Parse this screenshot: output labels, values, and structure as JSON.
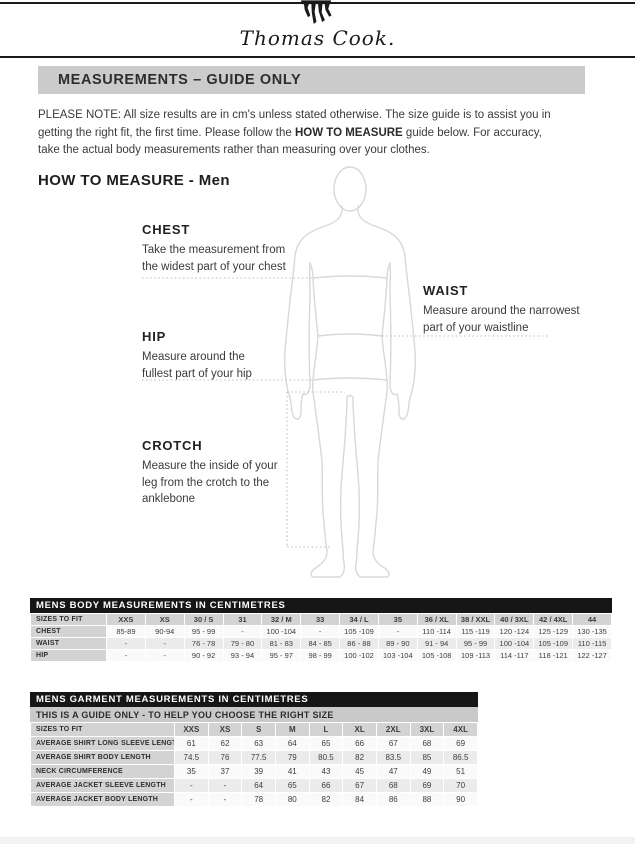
{
  "colors": {
    "bar_black": "#161616",
    "title_band_gray": "#cbcbcb",
    "table_label_gray": "#d3d3d3",
    "row_shade_gray": "#ebebeb",
    "figure_outline_gray": "#d8d8db"
  },
  "logo": {
    "text": "Thomas Cook."
  },
  "title_band": "MEASUREMENTS – GUIDE ONLY",
  "note": {
    "part1": "PLEASE NOTE:  All size results are in cm's unless stated otherwise. The size guide is to assist you in getting the right fit, the first time. Please follow the ",
    "bold": "HOW TO MEASURE",
    "part2": " guide below. For accuracy, take the actual body measurements rather than measuring over your clothes."
  },
  "how_to_measure": {
    "heading": "HOW TO MEASURE - Men",
    "chest": {
      "title": "CHEST",
      "line1": "Take the measurement from",
      "line2": "the widest part of your chest"
    },
    "waist": {
      "title": "WAIST",
      "line1": "Measure around the narrowest",
      "line2": "part of  your waistline"
    },
    "hip": {
      "title": "HIP",
      "line1": "Measure around the",
      "line2": "fullest part of your hip"
    },
    "crotch": {
      "title": "CROTCH",
      "line1": "Measure the inside of your",
      "line2": "leg from the crotch to the",
      "line3": "anklebone"
    }
  },
  "body_table": {
    "title": "MENS BODY MEASUREMENTS IN CENTIMETRES",
    "header_label": "SIZES TO FIT",
    "header": [
      "XXS",
      "XS",
      "30 / S",
      "31",
      "32 / M",
      "33",
      "34 / L",
      "35",
      "36 / XL",
      "38 / XXL",
      "40 / 3XL",
      "42 / 4XL",
      "44"
    ],
    "rows": [
      {
        "label": "CHEST",
        "values": [
          "85-89",
          "90-94",
          "95 - 99",
          "-",
          "100 -104",
          "-",
          "105 -109",
          "-",
          "110 -114",
          "115 -119",
          "120 -124",
          "125 -129",
          "130 -135"
        ]
      },
      {
        "label": "WAIST",
        "values": [
          "-",
          "-",
          "76 - 78",
          "79 - 80",
          "81 - 83",
          "84 - 85",
          "86 - 88",
          "89 - 90",
          "91 - 94",
          "95 - 99",
          "100 -104",
          "105 -109",
          "110 -115"
        ]
      },
      {
        "label": "HIP",
        "values": [
          "-",
          "-",
          "90 - 92",
          "93 - 94",
          "95 - 97",
          "98 - 99",
          "100 -102",
          "103 -104",
          "105 -108",
          "109 -113",
          "114 -117",
          "118 -121",
          "122 -127"
        ]
      }
    ]
  },
  "garment_table": {
    "title": "MENS GARMENT MEASUREMENTS IN CENTIMETRES",
    "subtitle": "THIS IS A GUIDE ONLY - TO HELP YOU CHOOSE THE RIGHT SIZE",
    "header_label": "SIZES TO FIT",
    "header": [
      "XXS",
      "XS",
      "S",
      "M",
      "L",
      "XL",
      "2XL",
      "3XL",
      "4XL"
    ],
    "rows": [
      {
        "label": "AVERAGE SHIRT LONG SLEEVE LENGTH",
        "values": [
          "61",
          "62",
          "63",
          "64",
          "65",
          "66",
          "67",
          "68",
          "69"
        ]
      },
      {
        "label": "AVERAGE SHIRT BODY LENGTH",
        "values": [
          "74.5",
          "76",
          "77.5",
          "79",
          "80.5",
          "82",
          "83.5",
          "85",
          "86.5"
        ]
      },
      {
        "label": "NECK CIRCUMFERENCE",
        "values": [
          "35",
          "37",
          "39",
          "41",
          "43",
          "45",
          "47",
          "49",
          "51"
        ]
      },
      {
        "label": "AVERAGE JACKET SLEEVE LENGTH",
        "values": [
          "-",
          "-",
          "64",
          "65",
          "66",
          "67",
          "68",
          "69",
          "70"
        ]
      },
      {
        "label": "AVERAGE JACKET BODY LENGTH",
        "values": [
          "-",
          "-",
          "78",
          "80",
          "82",
          "84",
          "86",
          "88",
          "90"
        ]
      }
    ]
  }
}
